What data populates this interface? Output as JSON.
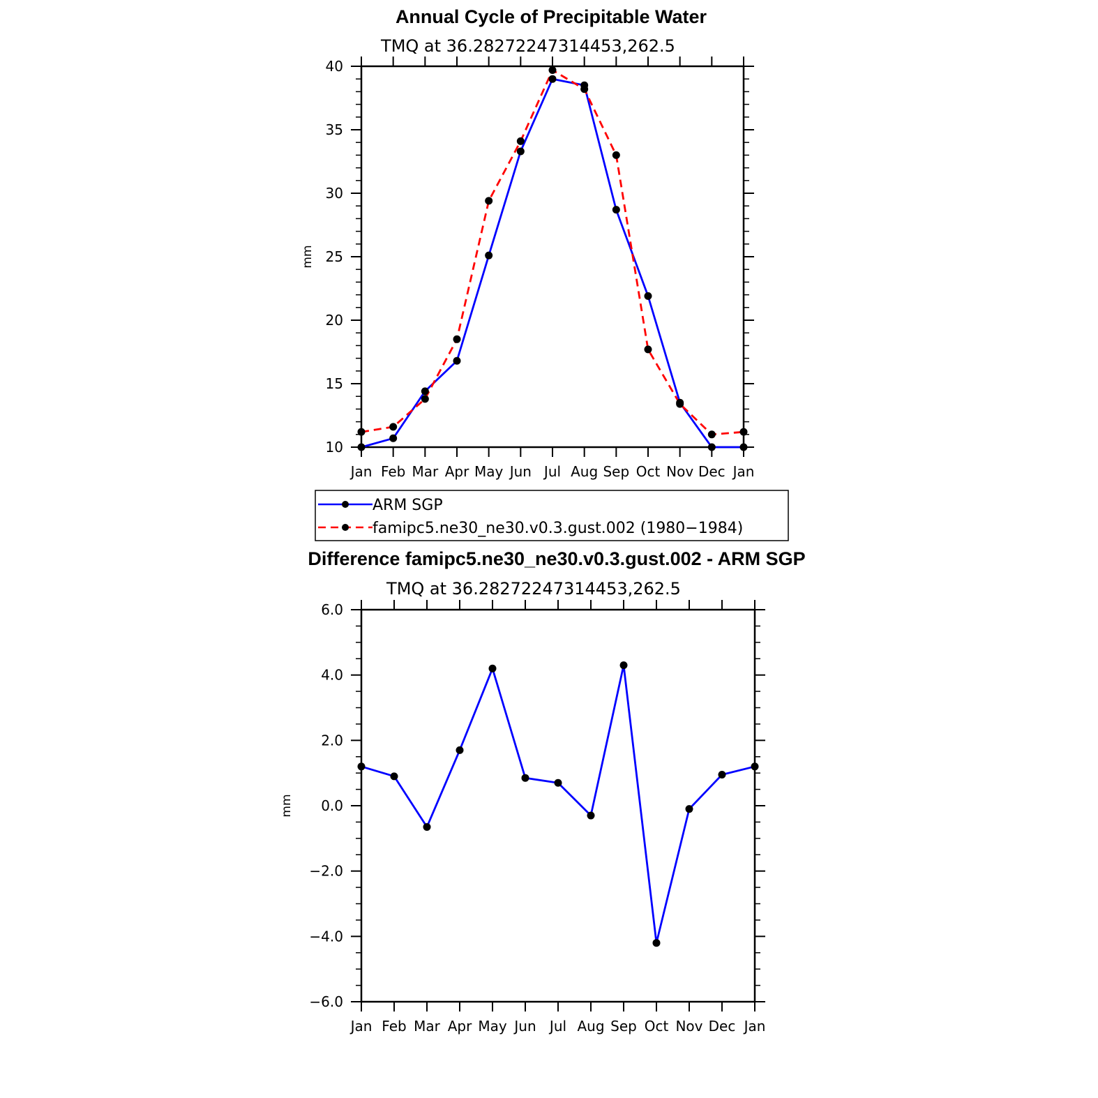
{
  "chart_data": [
    {
      "type": "line",
      "title": "Annual Cycle of Precipitable Water",
      "subtitle": "TMQ at 36.28272247314453,262.5",
      "ylabel": "mm",
      "xlabel": "",
      "ylim": [
        10,
        40
      ],
      "yticks": [
        10,
        15,
        20,
        25,
        30,
        35,
        40
      ],
      "ytick_labels": [
        "10",
        "15",
        "20",
        "25",
        "30",
        "35",
        "40"
      ],
      "categories": [
        "Jan",
        "Feb",
        "Mar",
        "Apr",
        "May",
        "Jun",
        "Jul",
        "Aug",
        "Sep",
        "Oct",
        "Nov",
        "Dec",
        "Jan"
      ],
      "series": [
        {
          "name": "ARM SGP",
          "color": "#0000ff",
          "dash": "solid",
          "values": [
            10.0,
            10.7,
            14.4,
            16.8,
            25.1,
            33.3,
            39.0,
            38.5,
            28.7,
            21.9,
            13.5,
            10.0,
            10.0
          ]
        },
        {
          "name": "famipc5.ne30_ne30.v0.3.gust.002 (1980−1984)",
          "color": "#ff0000",
          "dash": "dashed",
          "values": [
            11.2,
            11.6,
            13.8,
            18.5,
            29.4,
            34.1,
            39.7,
            38.2,
            33.0,
            17.7,
            13.4,
            11.0,
            11.2
          ]
        }
      ],
      "legend": {
        "placement": "bottom",
        "items": [
          "ARM SGP",
          "famipc5.ne30_ne30.v0.3.gust.002 (1980−1984)"
        ]
      }
    },
    {
      "type": "line",
      "title": "Difference famipc5.ne30_ne30.v0.3.gust.002 - ARM SGP",
      "subtitle": "TMQ at 36.28272247314453,262.5",
      "ylabel": "mm",
      "xlabel": "",
      "ylim": [
        -6.0,
        6.0
      ],
      "yticks": [
        -6,
        -4,
        -2,
        0,
        2,
        4,
        6
      ],
      "ytick_labels": [
        "−6.0",
        "−4.0",
        "−2.0",
        "0.0",
        "2.0",
        "4.0",
        "6.0"
      ],
      "categories": [
        "Jan",
        "Feb",
        "Mar",
        "Apr",
        "May",
        "Jun",
        "Jul",
        "Aug",
        "Sep",
        "Oct",
        "Nov",
        "Dec",
        "Jan"
      ],
      "series": [
        {
          "name": "Difference",
          "color": "#0000ff",
          "dash": "solid",
          "values": [
            1.2,
            0.9,
            -0.65,
            1.7,
            4.2,
            0.85,
            0.7,
            -0.3,
            4.3,
            -4.2,
            -0.1,
            0.95,
            1.2
          ]
        }
      ]
    }
  ]
}
